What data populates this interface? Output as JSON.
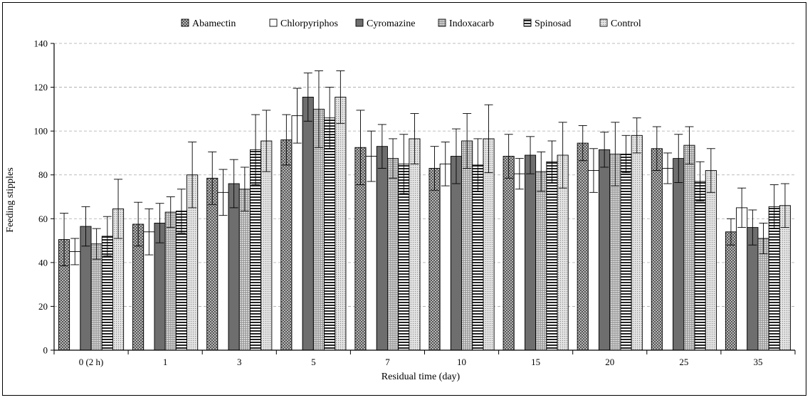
{
  "chart_data": {
    "type": "bar",
    "title": "",
    "xlabel": "Residual time (day)",
    "ylabel": "Feeding stipples",
    "ylim": [
      0,
      140
    ],
    "yticks": [
      0,
      20,
      40,
      60,
      80,
      100,
      120,
      140
    ],
    "grid": true,
    "legend_position": "top",
    "error_bars": true,
    "categories": [
      "0 (2 h)",
      "1",
      "3",
      "5",
      "7",
      "10",
      "15",
      "20",
      "25",
      "35"
    ],
    "series": [
      {
        "name": "Abamectin",
        "pattern": "crosshatch",
        "values": [
          50.5,
          57.5,
          78.5,
          96,
          92.5,
          83,
          88.5,
          94.5,
          92,
          54
        ],
        "errors": [
          12,
          10,
          12,
          11.5,
          17,
          10,
          10,
          8,
          10,
          6
        ]
      },
      {
        "name": "Chlorpyriphos",
        "pattern": "white",
        "values": [
          45,
          54,
          72,
          107,
          88.5,
          85,
          80.5,
          82,
          83,
          65
        ],
        "errors": [
          6,
          10.5,
          10.5,
          12.5,
          11.5,
          10,
          7,
          10,
          7,
          9
        ]
      },
      {
        "name": "Cyromazine",
        "pattern": "solid",
        "values": [
          56.5,
          58,
          76,
          115.5,
          93,
          88.5,
          89,
          91.5,
          87.5,
          56
        ],
        "errors": [
          9,
          9,
          11,
          11,
          10,
          12.5,
          8.5,
          8,
          11,
          8
        ]
      },
      {
        "name": "Indoxacarb",
        "pattern": "dots",
        "values": [
          48.5,
          63,
          73.5,
          110,
          87.5,
          95.5,
          81.5,
          89.5,
          93.5,
          51
        ],
        "errors": [
          7,
          7,
          10,
          17.5,
          9,
          12.5,
          9,
          14.5,
          8.5,
          7
        ]
      },
      {
        "name": "Spinosad",
        "pattern": "hstripes",
        "values": [
          52,
          63.5,
          91.5,
          106,
          85,
          84.5,
          86,
          89.5,
          77,
          65.5
        ],
        "errors": [
          9,
          10,
          16,
          14,
          13.5,
          12,
          9.5,
          8.5,
          9,
          10
        ]
      },
      {
        "name": "Control",
        "pattern": "fine-dots",
        "values": [
          64.5,
          80,
          95.5,
          115.5,
          96.5,
          96.5,
          89,
          98,
          82,
          66
        ],
        "errors": [
          13.5,
          15,
          14,
          12,
          11.5,
          15.5,
          15,
          8,
          10,
          10
        ]
      }
    ]
  }
}
